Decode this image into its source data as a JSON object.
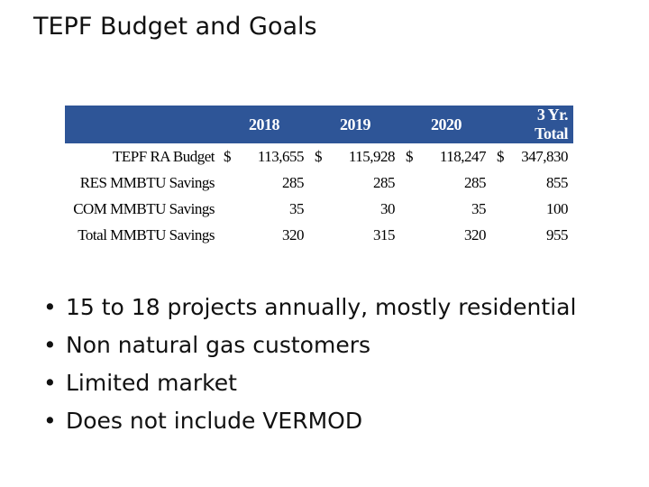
{
  "slide": {
    "title": "TEPF Budget and Goals"
  },
  "table": {
    "headers": [
      "",
      "",
      "2018",
      "",
      "2019",
      "",
      "2020",
      "",
      "3 Yr. Total"
    ],
    "rows": [
      {
        "label": "TEPF RA Budget",
        "cells": [
          "$",
          "113,655",
          "$",
          "115,928",
          "$",
          "118,247",
          "$",
          "347,830"
        ]
      },
      {
        "label": "RES MMBTU Savings",
        "cells": [
          "",
          "285",
          "",
          "285",
          "",
          "285",
          "",
          "855"
        ]
      },
      {
        "label": "COM MMBTU Savings",
        "cells": [
          "",
          "35",
          "",
          "30",
          "",
          "35",
          "",
          "100"
        ]
      },
      {
        "label": "Total MMBTU Savings",
        "cells": [
          "",
          "320",
          "",
          "315",
          "",
          "320",
          "",
          "955"
        ]
      }
    ],
    "header_color": "#2e5597"
  },
  "bullets": {
    "marker": "•",
    "items": [
      "15 to 18 projects annually, mostly residential",
      "Non natural gas customers",
      "Limited market",
      "Does not include VERMOD"
    ]
  }
}
